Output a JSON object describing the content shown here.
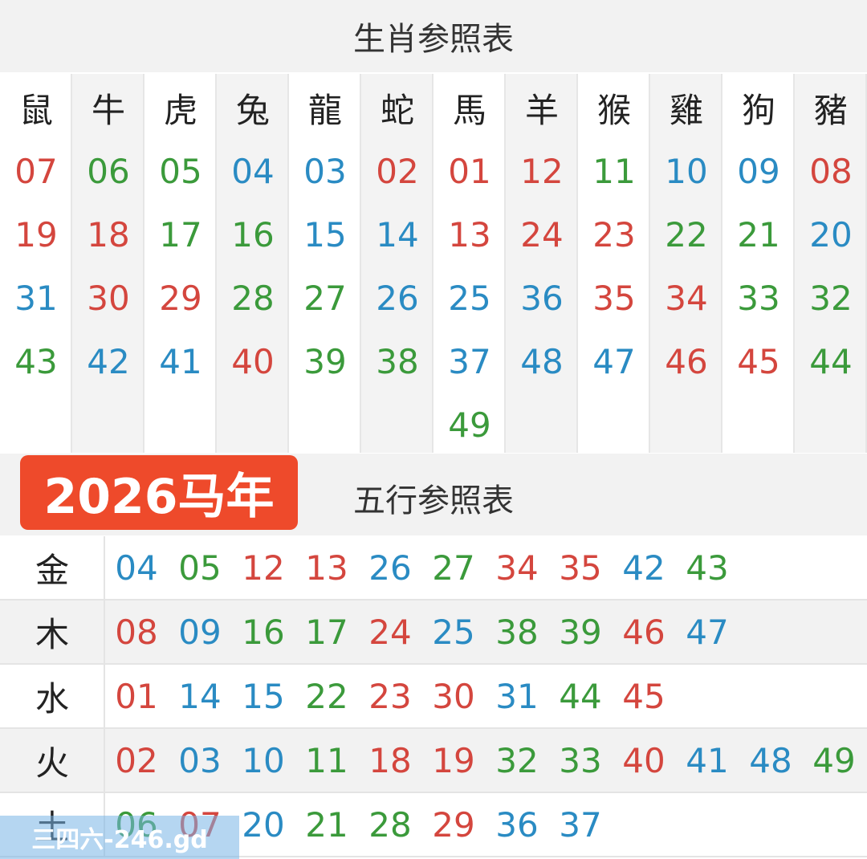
{
  "colors": {
    "red": "#d4463e",
    "blue": "#2a8bc3",
    "green": "#3b9a3b"
  },
  "zodiac_table": {
    "title": "生肖参照表",
    "columns": [
      {
        "name": "鼠",
        "numbers": [
          {
            "text": "07",
            "color": "red"
          },
          {
            "text": "19",
            "color": "red"
          },
          {
            "text": "31",
            "color": "blue"
          },
          {
            "text": "43",
            "color": "green"
          }
        ]
      },
      {
        "name": "牛",
        "numbers": [
          {
            "text": "06",
            "color": "green"
          },
          {
            "text": "18",
            "color": "red"
          },
          {
            "text": "30",
            "color": "red"
          },
          {
            "text": "42",
            "color": "blue"
          }
        ]
      },
      {
        "name": "虎",
        "numbers": [
          {
            "text": "05",
            "color": "green"
          },
          {
            "text": "17",
            "color": "green"
          },
          {
            "text": "29",
            "color": "red"
          },
          {
            "text": "41",
            "color": "blue"
          }
        ]
      },
      {
        "name": "兔",
        "numbers": [
          {
            "text": "04",
            "color": "blue"
          },
          {
            "text": "16",
            "color": "green"
          },
          {
            "text": "28",
            "color": "green"
          },
          {
            "text": "40",
            "color": "red"
          }
        ]
      },
      {
        "name": "龍",
        "numbers": [
          {
            "text": "03",
            "color": "blue"
          },
          {
            "text": "15",
            "color": "blue"
          },
          {
            "text": "27",
            "color": "green"
          },
          {
            "text": "39",
            "color": "green"
          }
        ]
      },
      {
        "name": "蛇",
        "numbers": [
          {
            "text": "02",
            "color": "red"
          },
          {
            "text": "14",
            "color": "blue"
          },
          {
            "text": "26",
            "color": "blue"
          },
          {
            "text": "38",
            "color": "green"
          }
        ]
      },
      {
        "name": "馬",
        "numbers": [
          {
            "text": "01",
            "color": "red"
          },
          {
            "text": "13",
            "color": "red"
          },
          {
            "text": "25",
            "color": "blue"
          },
          {
            "text": "37",
            "color": "blue"
          },
          {
            "text": "49",
            "color": "green"
          }
        ]
      },
      {
        "name": "羊",
        "numbers": [
          {
            "text": "12",
            "color": "red"
          },
          {
            "text": "24",
            "color": "red"
          },
          {
            "text": "36",
            "color": "blue"
          },
          {
            "text": "48",
            "color": "blue"
          }
        ]
      },
      {
        "name": "猴",
        "numbers": [
          {
            "text": "11",
            "color": "green"
          },
          {
            "text": "23",
            "color": "red"
          },
          {
            "text": "35",
            "color": "red"
          },
          {
            "text": "47",
            "color": "blue"
          }
        ]
      },
      {
        "name": "雞",
        "numbers": [
          {
            "text": "10",
            "color": "blue"
          },
          {
            "text": "22",
            "color": "green"
          },
          {
            "text": "34",
            "color": "red"
          },
          {
            "text": "46",
            "color": "red"
          }
        ]
      },
      {
        "name": "狗",
        "numbers": [
          {
            "text": "09",
            "color": "blue"
          },
          {
            "text": "21",
            "color": "green"
          },
          {
            "text": "33",
            "color": "green"
          },
          {
            "text": "45",
            "color": "red"
          }
        ]
      },
      {
        "name": "豬",
        "numbers": [
          {
            "text": "08",
            "color": "red"
          },
          {
            "text": "20",
            "color": "blue"
          },
          {
            "text": "32",
            "color": "green"
          },
          {
            "text": "44",
            "color": "green"
          }
        ]
      }
    ]
  },
  "badge": "2026马年",
  "elements_table": {
    "title": "五行参照表",
    "rows": [
      {
        "name": "金",
        "numbers": [
          {
            "text": "04",
            "color": "blue"
          },
          {
            "text": "05",
            "color": "green"
          },
          {
            "text": "12",
            "color": "red"
          },
          {
            "text": "13",
            "color": "red"
          },
          {
            "text": "26",
            "color": "blue"
          },
          {
            "text": "27",
            "color": "green"
          },
          {
            "text": "34",
            "color": "red"
          },
          {
            "text": "35",
            "color": "red"
          },
          {
            "text": "42",
            "color": "blue"
          },
          {
            "text": "43",
            "color": "green"
          }
        ]
      },
      {
        "name": "木",
        "numbers": [
          {
            "text": "08",
            "color": "red"
          },
          {
            "text": "09",
            "color": "blue"
          },
          {
            "text": "16",
            "color": "green"
          },
          {
            "text": "17",
            "color": "green"
          },
          {
            "text": "24",
            "color": "red"
          },
          {
            "text": "25",
            "color": "blue"
          },
          {
            "text": "38",
            "color": "green"
          },
          {
            "text": "39",
            "color": "green"
          },
          {
            "text": "46",
            "color": "red"
          },
          {
            "text": "47",
            "color": "blue"
          }
        ]
      },
      {
        "name": "水",
        "numbers": [
          {
            "text": "01",
            "color": "red"
          },
          {
            "text": "14",
            "color": "blue"
          },
          {
            "text": "15",
            "color": "blue"
          },
          {
            "text": "22",
            "color": "green"
          },
          {
            "text": "23",
            "color": "red"
          },
          {
            "text": "30",
            "color": "red"
          },
          {
            "text": "31",
            "color": "blue"
          },
          {
            "text": "44",
            "color": "green"
          },
          {
            "text": "45",
            "color": "red"
          }
        ]
      },
      {
        "name": "火",
        "numbers": [
          {
            "text": "02",
            "color": "red"
          },
          {
            "text": "03",
            "color": "blue"
          },
          {
            "text": "10",
            "color": "blue"
          },
          {
            "text": "11",
            "color": "green"
          },
          {
            "text": "18",
            "color": "red"
          },
          {
            "text": "19",
            "color": "red"
          },
          {
            "text": "32",
            "color": "green"
          },
          {
            "text": "33",
            "color": "green"
          },
          {
            "text": "40",
            "color": "red"
          },
          {
            "text": "41",
            "color": "blue"
          },
          {
            "text": "48",
            "color": "blue"
          },
          {
            "text": "49",
            "color": "green"
          }
        ]
      },
      {
        "name": "土",
        "numbers": [
          {
            "text": "06",
            "color": "green"
          },
          {
            "text": "07",
            "color": "red"
          },
          {
            "text": "20",
            "color": "blue"
          },
          {
            "text": "21",
            "color": "green"
          },
          {
            "text": "28",
            "color": "green"
          },
          {
            "text": "29",
            "color": "red"
          },
          {
            "text": "36",
            "color": "blue"
          },
          {
            "text": "37",
            "color": "blue"
          }
        ]
      }
    ]
  },
  "watermark": "三四六-246.gd"
}
